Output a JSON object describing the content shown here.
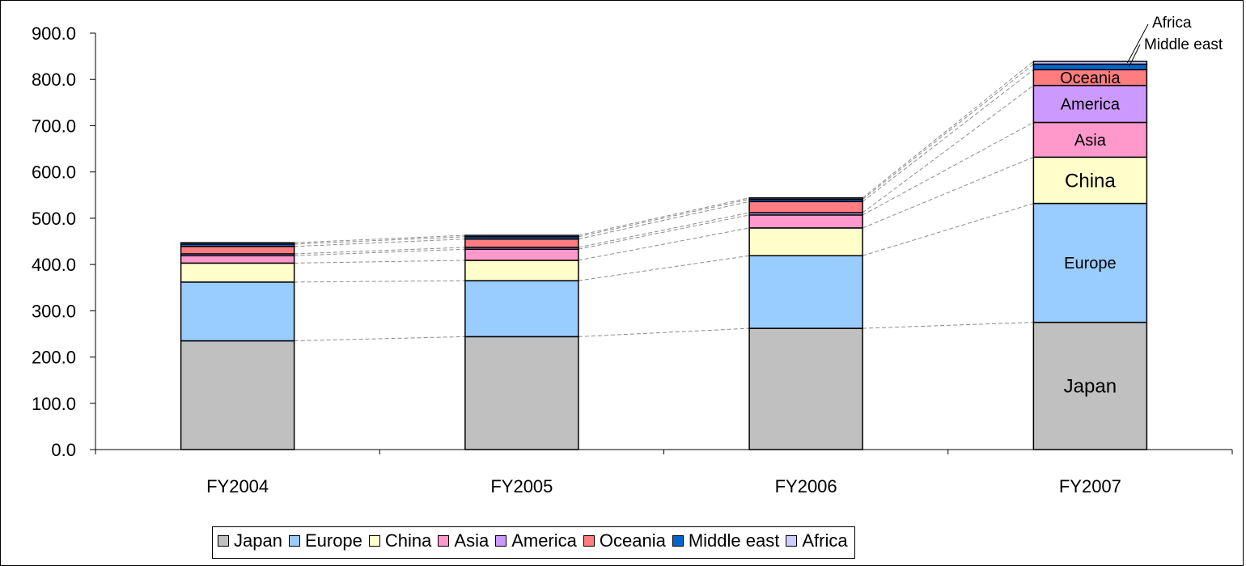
{
  "chart_data": {
    "type": "bar",
    "stacked": true,
    "categories": [
      "FY2004",
      "FY2005",
      "FY2006",
      "FY2007"
    ],
    "series": [
      {
        "name": "Japan",
        "color": "#C0C0C0",
        "values": [
          235,
          244,
          262,
          275
        ]
      },
      {
        "name": "Europe",
        "color": "#99CCFF",
        "values": [
          127,
          121,
          157,
          257
        ]
      },
      {
        "name": "China",
        "color": "#FFFFCC",
        "values": [
          41,
          44,
          60,
          100
        ]
      },
      {
        "name": "Asia",
        "color": "#FF99CC",
        "values": [
          16,
          24,
          28,
          75
        ]
      },
      {
        "name": "America",
        "color": "#CC99FF",
        "values": [
          4,
          4,
          5,
          80
        ]
      },
      {
        "name": "Oceania",
        "color": "#FF7C80",
        "values": [
          16,
          18,
          24,
          34
        ]
      },
      {
        "name": "Middle east",
        "color": "#0066CC",
        "values": [
          5,
          5,
          5,
          12
        ]
      },
      {
        "name": "Africa",
        "color": "#CCCCFF",
        "values": [
          3,
          3,
          3,
          6
        ]
      }
    ],
    "bar_labels": {
      "FY2007": [
        "Japan",
        "Europe",
        "China",
        "Asia",
        "America",
        "Oceania"
      ]
    },
    "callouts": [
      "Africa",
      "Middle east"
    ],
    "ylim": [
      0,
      900
    ],
    "yticks": [
      0,
      100,
      200,
      300,
      400,
      500,
      600,
      700,
      800,
      900
    ],
    "ytick_format": "0.0",
    "connector_lines": "dashed",
    "legend_position": "bottom"
  }
}
